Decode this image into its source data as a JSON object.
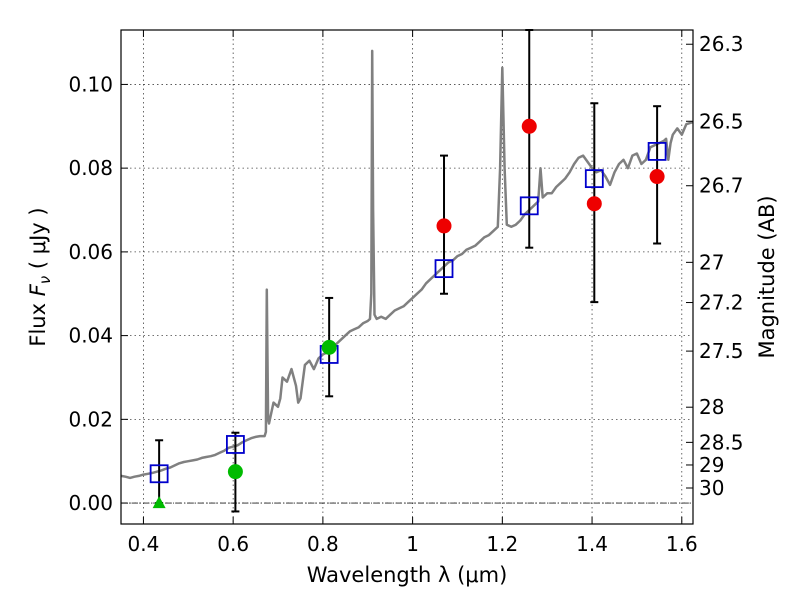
{
  "chart_data": {
    "type": "scatter",
    "xlabel": "Wavelength  λ (μm)",
    "ylabel_prefix": "Flux  ",
    "ylabel_symbol": "F",
    "ylabel_sub": "ν",
    "ylabel_suffix": "  ( μJy )",
    "y2label": "Magnitude (AB)",
    "xlim": [
      0.35,
      1.625
    ],
    "ylim": [
      -0.005,
      0.113
    ],
    "grid": true,
    "x_ticks": [
      {
        "value": 0.4,
        "label": "0.4"
      },
      {
        "value": 0.6,
        "label": "0.6"
      },
      {
        "value": 0.8,
        "label": "0.8"
      },
      {
        "value": 1.0,
        "label": "1"
      },
      {
        "value": 1.2,
        "label": "1.2"
      },
      {
        "value": 1.4,
        "label": "1.4"
      },
      {
        "value": 1.6,
        "label": "1.6"
      }
    ],
    "y_ticks": [
      {
        "value": 0.0,
        "label": "0.00"
      },
      {
        "value": 0.02,
        "label": "0.02"
      },
      {
        "value": 0.04,
        "label": "0.04"
      },
      {
        "value": 0.06,
        "label": "0.06"
      },
      {
        "value": 0.08,
        "label": "0.08"
      },
      {
        "value": 0.1,
        "label": "0.10"
      }
    ],
    "mag_ticks": [
      {
        "label": "26.3",
        "flux": 0.1096
      },
      {
        "label": "26.5",
        "flux": 0.0912
      },
      {
        "label": "26.7",
        "flux": 0.0758
      },
      {
        "label": "27",
        "flux": 0.0575
      },
      {
        "label": "27.2",
        "flux": 0.0479
      },
      {
        "label": "27.5",
        "flux": 0.0363
      },
      {
        "label": "28",
        "flux": 0.0229
      },
      {
        "label": "28.5",
        "flux": 0.0145
      },
      {
        "label": "29",
        "flux": 0.0091
      },
      {
        "label": "30",
        "flux": 0.0036
      }
    ],
    "model_color": "#808080",
    "model_spectrum": [
      [
        0.35,
        0.0065
      ],
      [
        0.36,
        0.0063
      ],
      [
        0.37,
        0.006
      ],
      [
        0.38,
        0.0063
      ],
      [
        0.39,
        0.0065
      ],
      [
        0.4,
        0.0068
      ],
      [
        0.41,
        0.007
      ],
      [
        0.42,
        0.0072
      ],
      [
        0.43,
        0.0075
      ],
      [
        0.44,
        0.0078
      ],
      [
        0.45,
        0.0082
      ],
      [
        0.46,
        0.0085
      ],
      [
        0.47,
        0.009
      ],
      [
        0.48,
        0.0095
      ],
      [
        0.49,
        0.0098
      ],
      [
        0.5,
        0.01
      ],
      [
        0.51,
        0.0102
      ],
      [
        0.52,
        0.0104
      ],
      [
        0.53,
        0.0108
      ],
      [
        0.54,
        0.011
      ],
      [
        0.55,
        0.0112
      ],
      [
        0.56,
        0.0115
      ],
      [
        0.57,
        0.012
      ],
      [
        0.58,
        0.0125
      ],
      [
        0.59,
        0.0132
      ],
      [
        0.6,
        0.0135
      ],
      [
        0.61,
        0.0138
      ],
      [
        0.62,
        0.0145
      ],
      [
        0.63,
        0.015
      ],
      [
        0.64,
        0.0155
      ],
      [
        0.65,
        0.0158
      ],
      [
        0.66,
        0.016
      ],
      [
        0.67,
        0.016
      ],
      [
        0.673,
        0.017
      ],
      [
        0.675,
        0.051
      ],
      [
        0.678,
        0.02
      ],
      [
        0.68,
        0.019
      ],
      [
        0.69,
        0.024
      ],
      [
        0.7,
        0.023
      ],
      [
        0.705,
        0.025
      ],
      [
        0.71,
        0.03
      ],
      [
        0.72,
        0.029
      ],
      [
        0.73,
        0.032
      ],
      [
        0.74,
        0.028
      ],
      [
        0.745,
        0.024
      ],
      [
        0.75,
        0.025
      ],
      [
        0.76,
        0.033
      ],
      [
        0.77,
        0.034
      ],
      [
        0.78,
        0.032
      ],
      [
        0.79,
        0.0345
      ],
      [
        0.8,
        0.0355
      ],
      [
        0.81,
        0.036
      ],
      [
        0.82,
        0.0375
      ],
      [
        0.83,
        0.038
      ],
      [
        0.84,
        0.039
      ],
      [
        0.85,
        0.04
      ],
      [
        0.86,
        0.041
      ],
      [
        0.87,
        0.0415
      ],
      [
        0.88,
        0.042
      ],
      [
        0.89,
        0.043
      ],
      [
        0.9,
        0.0435
      ],
      [
        0.905,
        0.044
      ],
      [
        0.908,
        0.05
      ],
      [
        0.91,
        0.108
      ],
      [
        0.912,
        0.07
      ],
      [
        0.915,
        0.045
      ],
      [
        0.92,
        0.044
      ],
      [
        0.93,
        0.0445
      ],
      [
        0.94,
        0.044
      ],
      [
        0.95,
        0.045
      ],
      [
        0.96,
        0.046
      ],
      [
        0.97,
        0.0465
      ],
      [
        0.98,
        0.047
      ],
      [
        0.99,
        0.048
      ],
      [
        1.0,
        0.049
      ],
      [
        1.01,
        0.05
      ],
      [
        1.02,
        0.051
      ],
      [
        1.03,
        0.0525
      ],
      [
        1.04,
        0.0535
      ],
      [
        1.05,
        0.0545
      ],
      [
        1.06,
        0.0555
      ],
      [
        1.07,
        0.0565
      ],
      [
        1.08,
        0.0575
      ],
      [
        1.09,
        0.058
      ],
      [
        1.1,
        0.059
      ],
      [
        1.11,
        0.0595
      ],
      [
        1.12,
        0.0605
      ],
      [
        1.13,
        0.061
      ],
      [
        1.14,
        0.0615
      ],
      [
        1.15,
        0.0625
      ],
      [
        1.16,
        0.0635
      ],
      [
        1.17,
        0.064
      ],
      [
        1.18,
        0.065
      ],
      [
        1.19,
        0.066
      ],
      [
        1.195,
        0.08
      ],
      [
        1.2,
        0.104
      ],
      [
        1.205,
        0.08
      ],
      [
        1.21,
        0.0665
      ],
      [
        1.22,
        0.066
      ],
      [
        1.23,
        0.0665
      ],
      [
        1.24,
        0.0675
      ],
      [
        1.25,
        0.069
      ],
      [
        1.26,
        0.07
      ],
      [
        1.27,
        0.071
      ],
      [
        1.28,
        0.072
      ],
      [
        1.285,
        0.08
      ],
      [
        1.29,
        0.073
      ],
      [
        1.3,
        0.074
      ],
      [
        1.31,
        0.074
      ],
      [
        1.32,
        0.0755
      ],
      [
        1.33,
        0.0765
      ],
      [
        1.34,
        0.0775
      ],
      [
        1.35,
        0.079
      ],
      [
        1.36,
        0.081
      ],
      [
        1.37,
        0.0825
      ],
      [
        1.38,
        0.083
      ],
      [
        1.39,
        0.0815
      ],
      [
        1.4,
        0.08
      ],
      [
        1.41,
        0.079
      ],
      [
        1.42,
        0.0795
      ],
      [
        1.43,
        0.078
      ],
      [
        1.44,
        0.076
      ],
      [
        1.45,
        0.079
      ],
      [
        1.46,
        0.081
      ],
      [
        1.47,
        0.082
      ],
      [
        1.48,
        0.08
      ],
      [
        1.49,
        0.083
      ],
      [
        1.5,
        0.0835
      ],
      [
        1.51,
        0.081
      ],
      [
        1.52,
        0.082
      ],
      [
        1.53,
        0.085
      ],
      [
        1.54,
        0.0855
      ],
      [
        1.55,
        0.086
      ],
      [
        1.56,
        0.0865
      ],
      [
        1.565,
        0.087
      ],
      [
        1.57,
        0.082
      ],
      [
        1.575,
        0.086
      ],
      [
        1.58,
        0.088
      ],
      [
        1.59,
        0.0895
      ],
      [
        1.6,
        0.088
      ],
      [
        1.61,
        0.0905
      ],
      [
        1.625,
        0.091
      ]
    ],
    "model_photometry": {
      "color": "#0000cc",
      "points": [
        {
          "x": 0.435,
          "y": 0.007
        },
        {
          "x": 0.605,
          "y": 0.014
        },
        {
          "x": 0.814,
          "y": 0.0355
        },
        {
          "x": 1.07,
          "y": 0.056
        },
        {
          "x": 1.26,
          "y": 0.071
        },
        {
          "x": 1.405,
          "y": 0.0775
        },
        {
          "x": 1.545,
          "y": 0.084
        }
      ]
    },
    "observed": {
      "points": [
        {
          "x": 0.435,
          "y": 0.0,
          "marker": "triangle",
          "color": "#00bb00"
        },
        {
          "x": 0.605,
          "y": 0.0075,
          "err_low": -0.002,
          "err_high": 0.0168,
          "marker": "circle",
          "color": "#00bb00"
        },
        {
          "x": 0.814,
          "y": 0.0372,
          "err_low": 0.0255,
          "err_high": 0.049,
          "marker": "circle",
          "color": "#00bb00"
        },
        {
          "x": 1.07,
          "y": 0.0662,
          "err_low": 0.05,
          "err_high": 0.083,
          "marker": "circle",
          "color": "#ee0000"
        },
        {
          "x": 1.26,
          "y": 0.09,
          "err_low": 0.061,
          "err_high": 0.113,
          "marker": "circle",
          "color": "#ee0000"
        },
        {
          "x": 1.405,
          "y": 0.0715,
          "err_low": 0.048,
          "err_high": 0.0955,
          "marker": "circle",
          "color": "#ee0000"
        },
        {
          "x": 1.545,
          "y": 0.078,
          "err_low": 0.062,
          "err_high": 0.0948,
          "marker": "circle",
          "color": "#ee0000"
        }
      ]
    },
    "extra_errorbars": [
      {
        "x": 0.435,
        "err_low": 0.0,
        "err_high": 0.015
      }
    ]
  }
}
